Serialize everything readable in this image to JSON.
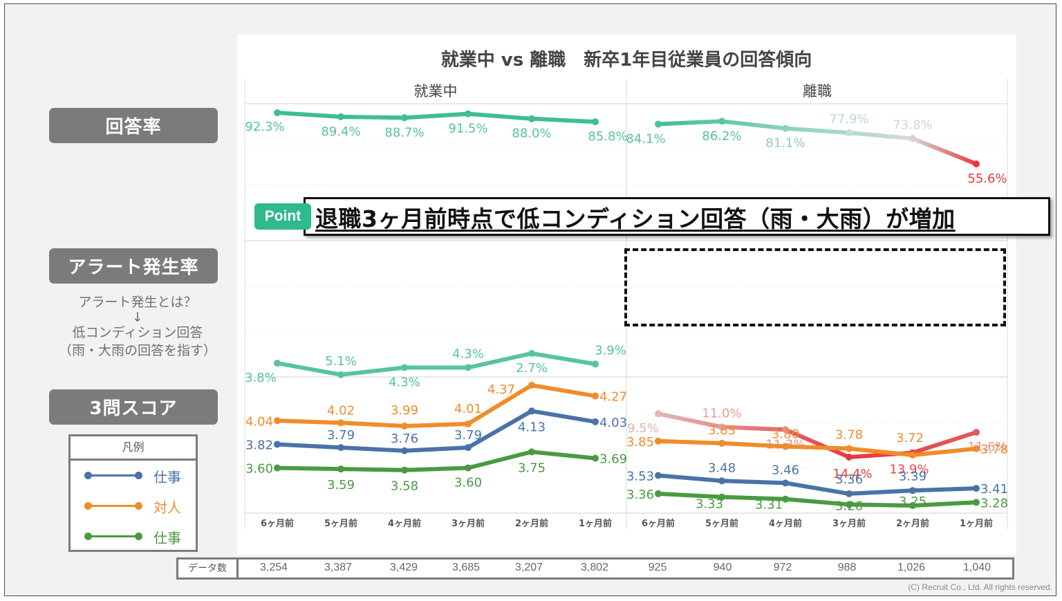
{
  "slide": {
    "title": "就業中 vs 離職　新卒1年目従業員の回答傾向",
    "copyright": "(C) Recruit Co., Ltd. All rights reserved."
  },
  "labels": {
    "response_rate": "回答率",
    "alert_rate": "アラート発生率",
    "alert_desc": [
      "アラート発生とは？",
      "↓",
      "低コンディション回答",
      "（雨・大雨の回答を指す）"
    ],
    "score": "3問スコア"
  },
  "legend": {
    "title": "凡例",
    "items": [
      {
        "label": "仕事",
        "color": "#4a72a8"
      },
      {
        "label": "対人",
        "color": "#f08c2a"
      },
      {
        "label": "仕事",
        "color": "#4a9a42"
      }
    ]
  },
  "callout": {
    "badge": "Point",
    "text": "退職3ヶ月前時点で低コンディション回答（雨・大雨）が増加"
  },
  "data_count": {
    "label": "データ数",
    "employed": [
      "3,254",
      "3,387",
      "3,429",
      "3,685",
      "3,207",
      "3,802"
    ],
    "resigned": [
      "925",
      "940",
      "972",
      "988",
      "1,026",
      "1,040"
    ]
  },
  "colors": {
    "teal": "#3dbf91",
    "red": "#e8383d",
    "blue": "#4a72a8",
    "orange": "#f08c2a",
    "green": "#4a9a42",
    "label_gray": "#7b7b7b"
  },
  "chart_data": {
    "type": "line",
    "title": "就業中 vs 離職　新卒1年目従業員の回答傾向",
    "panels": [
      "就業中",
      "離職"
    ],
    "categories": [
      "6ヶ月前",
      "5ヶ月前",
      "4ヶ月前",
      "3ヶ月前",
      "2ヶ月前",
      "1ヶ月前"
    ],
    "response_rate": {
      "unit": "%",
      "ylim": [
        40,
        100
      ],
      "employed": [
        92.3,
        89.4,
        88.7,
        91.5,
        88.0,
        85.8
      ],
      "resigned": [
        84.1,
        86.2,
        81.1,
        77.9,
        73.8,
        55.6
      ],
      "labels_employed": [
        "92.3%",
        "89.4%",
        "88.7%",
        "91.5%",
        "88.0%",
        "85.8%"
      ],
      "labels_resigned": [
        "84.1%",
        "86.2%",
        "81.1%",
        "77.9%",
        "73.8%",
        "55.6%"
      ]
    },
    "alert_rate": {
      "unit": "%",
      "ylim": [
        0,
        15
      ],
      "employed": [
        3.8,
        5.1,
        4.3,
        4.3,
        2.7,
        3.9
      ],
      "resigned": [
        9.5,
        11.0,
        11.3,
        14.4,
        13.9,
        11.6
      ],
      "labels_employed": [
        "3.8%",
        "5.1%",
        "4.3%",
        "4.3%",
        "2.7%",
        "3.9%"
      ],
      "labels_resigned": [
        "9.5%",
        "11.0%",
        "11.3%",
        "14.4%",
        "13.9%",
        "11.6%"
      ]
    },
    "score": {
      "ylim": [
        3.0,
        4.5
      ],
      "series": [
        {
          "name": "仕事",
          "color": "#4a72a8",
          "employed": [
            3.82,
            3.79,
            3.76,
            3.79,
            4.13,
            4.03
          ],
          "resigned": [
            3.53,
            3.48,
            3.46,
            3.36,
            3.39,
            3.41
          ]
        },
        {
          "name": "対人",
          "color": "#f08c2a",
          "employed": [
            4.04,
            4.02,
            3.99,
            4.01,
            4.37,
            4.27
          ],
          "resigned": [
            3.85,
            3.83,
            3.8,
            3.78,
            3.72,
            3.78
          ]
        },
        {
          "name": "仕事",
          "color": "#4a9a42",
          "employed": [
            3.6,
            3.59,
            3.58,
            3.6,
            3.75,
            3.69
          ],
          "resigned": [
            3.36,
            3.33,
            3.31,
            3.26,
            3.25,
            3.28
          ]
        }
      ]
    }
  }
}
